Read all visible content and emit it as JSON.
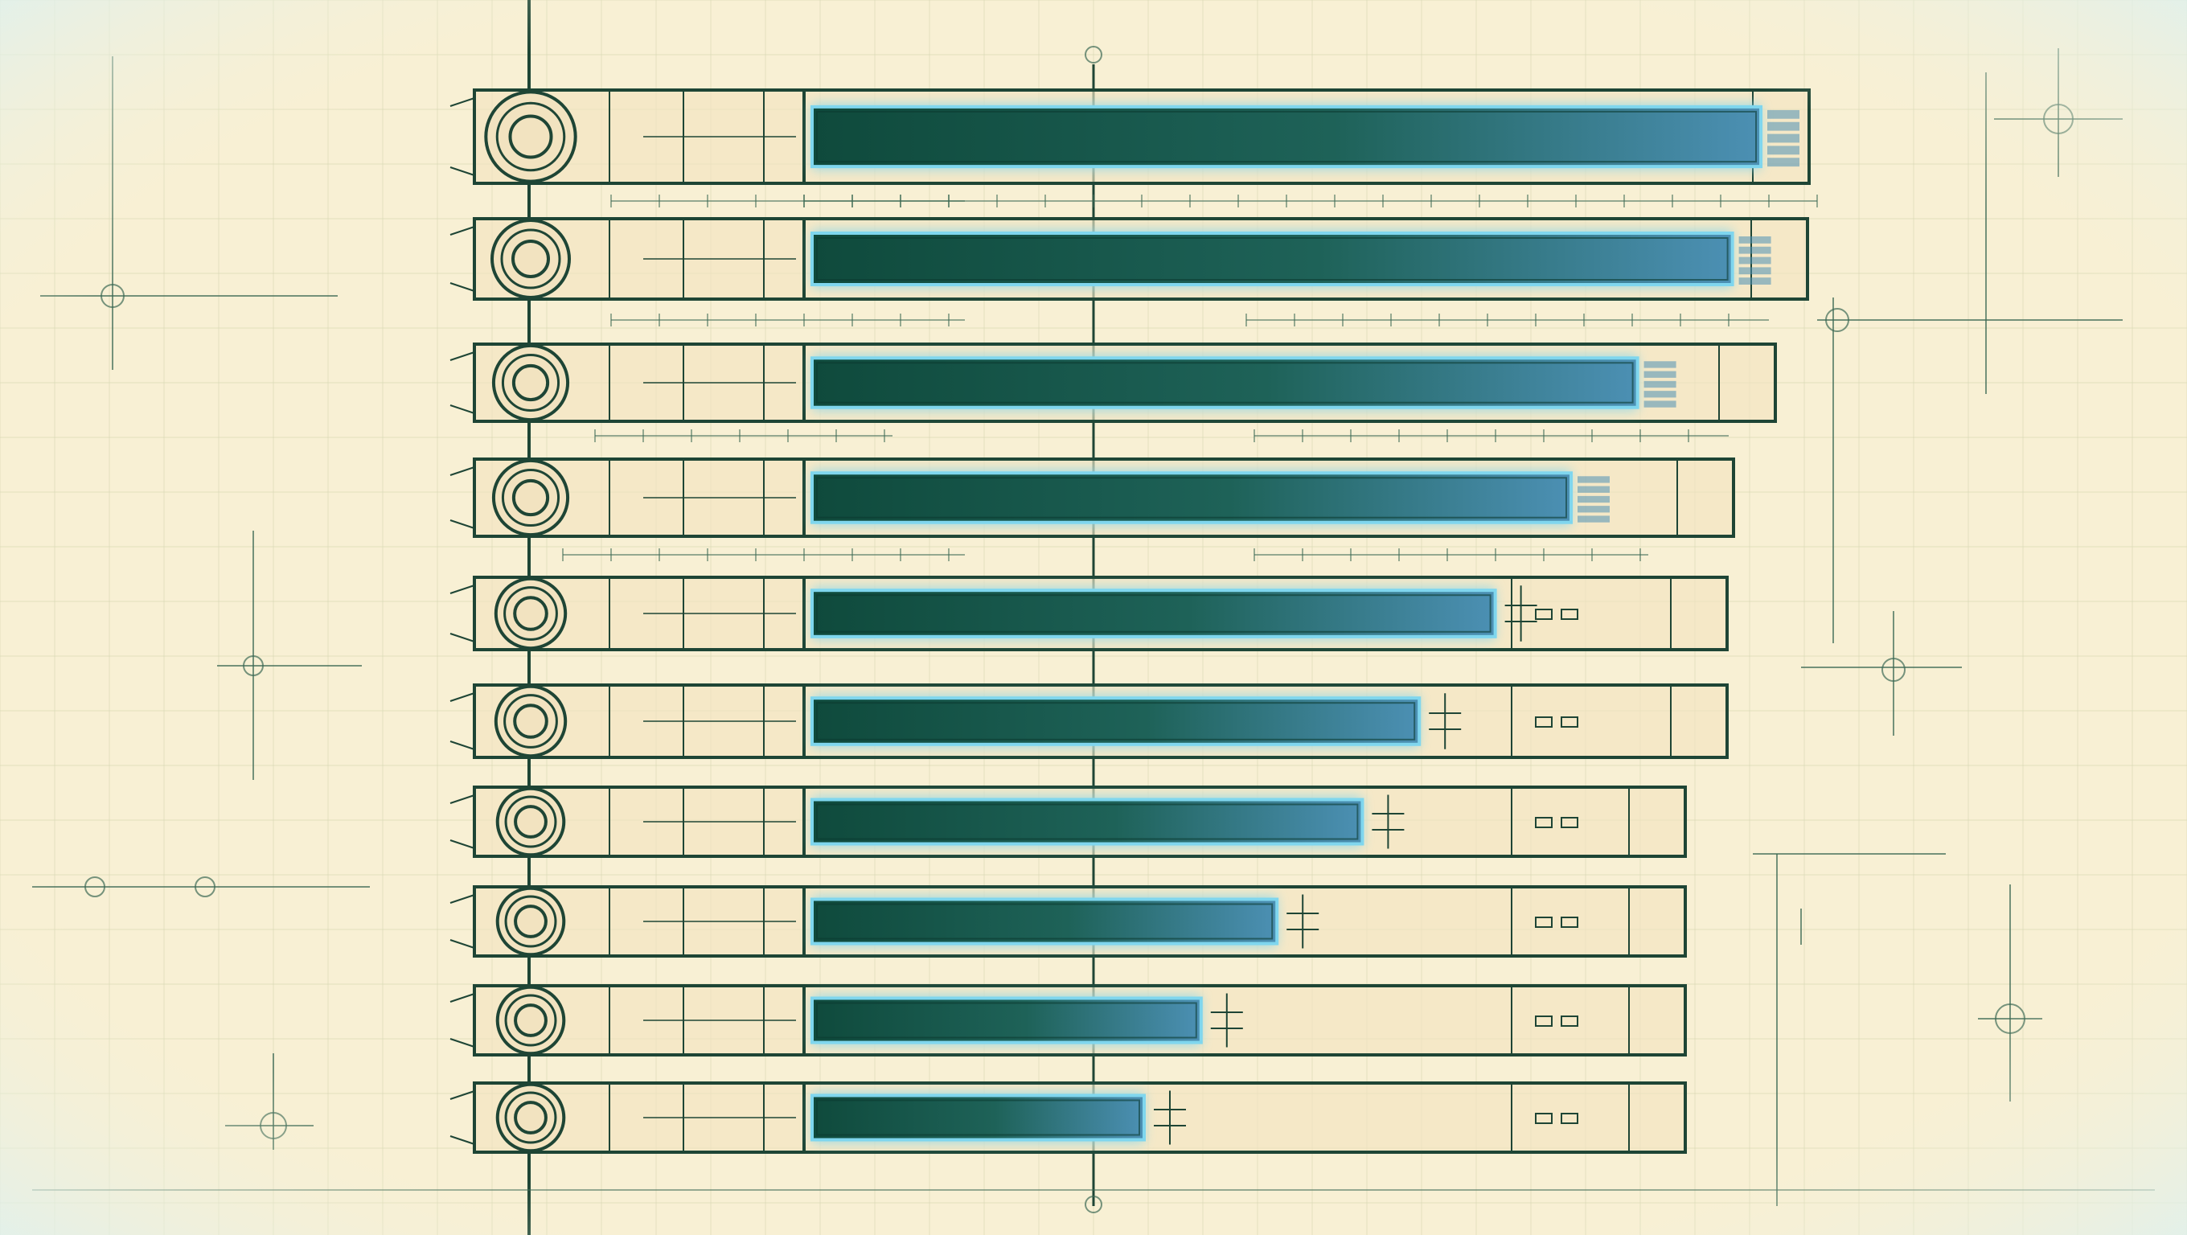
{
  "chart_data": {
    "type": "bar",
    "orientation": "horizontal",
    "categories": [
      "",
      "",
      "",
      "",
      "",
      "",
      "",
      "",
      "",
      ""
    ],
    "values": [
      100,
      97,
      87,
      80,
      72,
      64,
      58,
      49,
      41,
      35
    ],
    "xlim": [
      0,
      100
    ],
    "title": "",
    "xlabel": "",
    "ylabel": "",
    "grid": true,
    "legend": "none"
  },
  "colors": {
    "paper": "#f8f0d4",
    "paper_edge": "#e4f3f2",
    "grid": "#d9d9b4",
    "ink": "#1e4535",
    "frame_fill": "#f2e3c0",
    "bar_dark": "#0f4a3c",
    "bar_light": "#4c90b4",
    "glow": "#7fd6ee",
    "dim": "#3d6a55"
  }
}
